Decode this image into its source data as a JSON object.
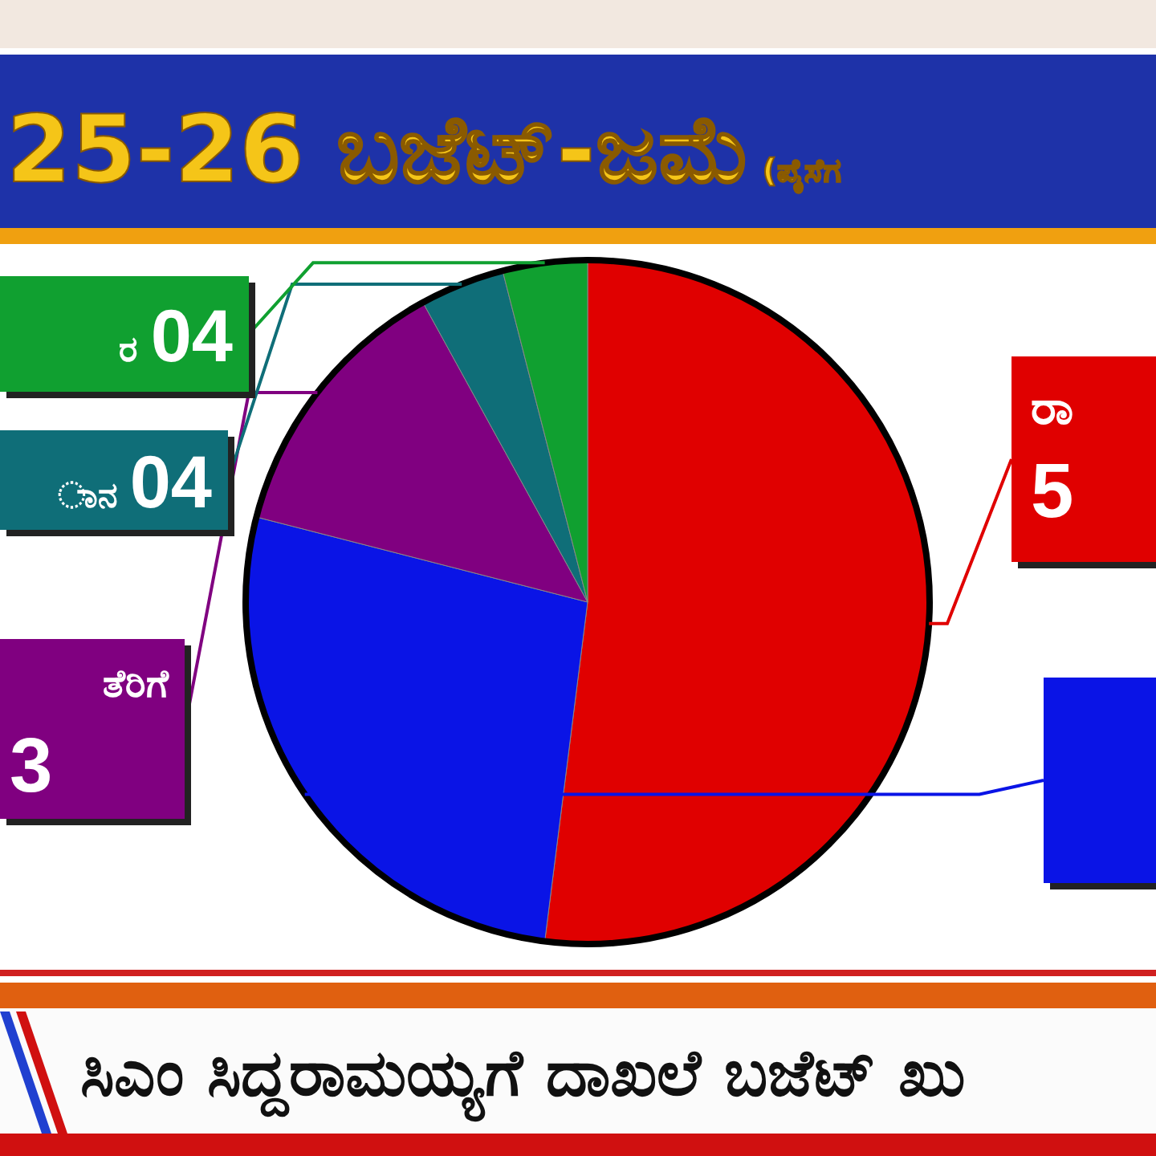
{
  "chart_data": {
    "type": "pie",
    "title": "25-26 ಬಜೆಟ್-ಜಮೆ",
    "subtitle": "(ಪೈಸೆಗ",
    "categories": [
      "ರಾ",
      null,
      "ತೆರಿಗೆ",
      "ಾನ",
      "ರ"
    ],
    "values": [
      52,
      27,
      13,
      4,
      4
    ],
    "colors": [
      "#e00000",
      "#0a14e6",
      "#800080",
      "#0f6e78",
      "#10a030"
    ],
    "value_labels": [
      null,
      null,
      null,
      "04",
      "04"
    ],
    "annotations": [
      "ಸಿಎಂ ಸಿದ್ದರಾಮಯ್ಯಗೆ ದಾಖಲೆ ಬಜೆಟ್ ಖು",
      {
        "text": "5",
        "x": "ರಾ"
      },
      {
        "text": "3",
        "x": "ತೆರಿಗೆ"
      }
    ]
  }
}
